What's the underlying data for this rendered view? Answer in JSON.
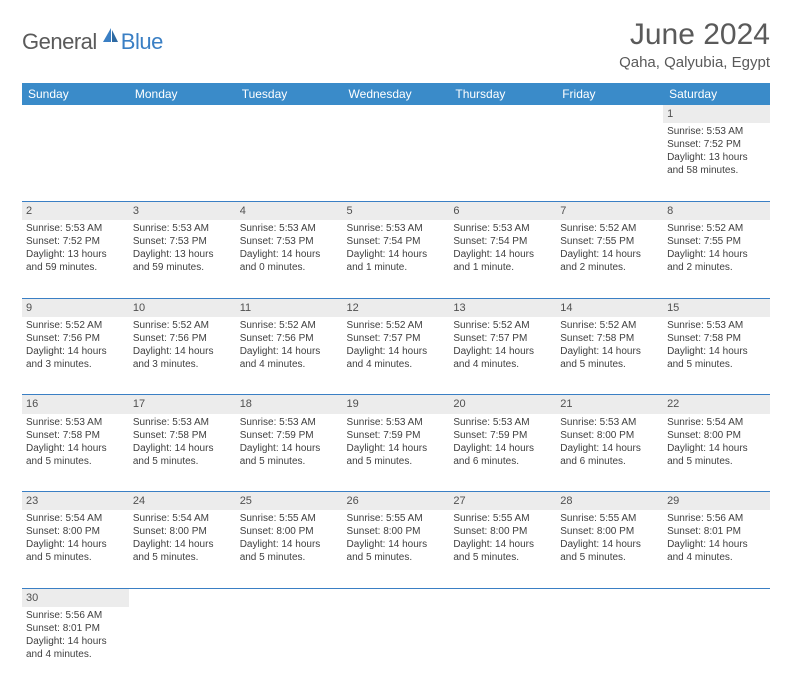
{
  "brand": {
    "part1": "General",
    "part2": "Blue"
  },
  "title": "June 2024",
  "location": "Qaha, Qalyubia, Egypt",
  "colors": {
    "header_bg": "#3a8bc9",
    "header_text": "#ffffff",
    "accent": "#3a7fc4",
    "text": "#404040",
    "daynum_bg": "#ececec"
  },
  "daysOfWeek": [
    "Sunday",
    "Monday",
    "Tuesday",
    "Wednesday",
    "Thursday",
    "Friday",
    "Saturday"
  ],
  "weeks": [
    [
      null,
      null,
      null,
      null,
      null,
      null,
      {
        "n": "1",
        "sr": "Sunrise: 5:53 AM",
        "ss": "Sunset: 7:52 PM",
        "dl1": "Daylight: 13 hours",
        "dl2": "and 58 minutes."
      }
    ],
    [
      {
        "n": "2",
        "sr": "Sunrise: 5:53 AM",
        "ss": "Sunset: 7:52 PM",
        "dl1": "Daylight: 13 hours",
        "dl2": "and 59 minutes."
      },
      {
        "n": "3",
        "sr": "Sunrise: 5:53 AM",
        "ss": "Sunset: 7:53 PM",
        "dl1": "Daylight: 13 hours",
        "dl2": "and 59 minutes."
      },
      {
        "n": "4",
        "sr": "Sunrise: 5:53 AM",
        "ss": "Sunset: 7:53 PM",
        "dl1": "Daylight: 14 hours",
        "dl2": "and 0 minutes."
      },
      {
        "n": "5",
        "sr": "Sunrise: 5:53 AM",
        "ss": "Sunset: 7:54 PM",
        "dl1": "Daylight: 14 hours",
        "dl2": "and 1 minute."
      },
      {
        "n": "6",
        "sr": "Sunrise: 5:53 AM",
        "ss": "Sunset: 7:54 PM",
        "dl1": "Daylight: 14 hours",
        "dl2": "and 1 minute."
      },
      {
        "n": "7",
        "sr": "Sunrise: 5:52 AM",
        "ss": "Sunset: 7:55 PM",
        "dl1": "Daylight: 14 hours",
        "dl2": "and 2 minutes."
      },
      {
        "n": "8",
        "sr": "Sunrise: 5:52 AM",
        "ss": "Sunset: 7:55 PM",
        "dl1": "Daylight: 14 hours",
        "dl2": "and 2 minutes."
      }
    ],
    [
      {
        "n": "9",
        "sr": "Sunrise: 5:52 AM",
        "ss": "Sunset: 7:56 PM",
        "dl1": "Daylight: 14 hours",
        "dl2": "and 3 minutes."
      },
      {
        "n": "10",
        "sr": "Sunrise: 5:52 AM",
        "ss": "Sunset: 7:56 PM",
        "dl1": "Daylight: 14 hours",
        "dl2": "and 3 minutes."
      },
      {
        "n": "11",
        "sr": "Sunrise: 5:52 AM",
        "ss": "Sunset: 7:56 PM",
        "dl1": "Daylight: 14 hours",
        "dl2": "and 4 minutes."
      },
      {
        "n": "12",
        "sr": "Sunrise: 5:52 AM",
        "ss": "Sunset: 7:57 PM",
        "dl1": "Daylight: 14 hours",
        "dl2": "and 4 minutes."
      },
      {
        "n": "13",
        "sr": "Sunrise: 5:52 AM",
        "ss": "Sunset: 7:57 PM",
        "dl1": "Daylight: 14 hours",
        "dl2": "and 4 minutes."
      },
      {
        "n": "14",
        "sr": "Sunrise: 5:52 AM",
        "ss": "Sunset: 7:58 PM",
        "dl1": "Daylight: 14 hours",
        "dl2": "and 5 minutes."
      },
      {
        "n": "15",
        "sr": "Sunrise: 5:53 AM",
        "ss": "Sunset: 7:58 PM",
        "dl1": "Daylight: 14 hours",
        "dl2": "and 5 minutes."
      }
    ],
    [
      {
        "n": "16",
        "sr": "Sunrise: 5:53 AM",
        "ss": "Sunset: 7:58 PM",
        "dl1": "Daylight: 14 hours",
        "dl2": "and 5 minutes."
      },
      {
        "n": "17",
        "sr": "Sunrise: 5:53 AM",
        "ss": "Sunset: 7:58 PM",
        "dl1": "Daylight: 14 hours",
        "dl2": "and 5 minutes."
      },
      {
        "n": "18",
        "sr": "Sunrise: 5:53 AM",
        "ss": "Sunset: 7:59 PM",
        "dl1": "Daylight: 14 hours",
        "dl2": "and 5 minutes."
      },
      {
        "n": "19",
        "sr": "Sunrise: 5:53 AM",
        "ss": "Sunset: 7:59 PM",
        "dl1": "Daylight: 14 hours",
        "dl2": "and 5 minutes."
      },
      {
        "n": "20",
        "sr": "Sunrise: 5:53 AM",
        "ss": "Sunset: 7:59 PM",
        "dl1": "Daylight: 14 hours",
        "dl2": "and 6 minutes."
      },
      {
        "n": "21",
        "sr": "Sunrise: 5:53 AM",
        "ss": "Sunset: 8:00 PM",
        "dl1": "Daylight: 14 hours",
        "dl2": "and 6 minutes."
      },
      {
        "n": "22",
        "sr": "Sunrise: 5:54 AM",
        "ss": "Sunset: 8:00 PM",
        "dl1": "Daylight: 14 hours",
        "dl2": "and 5 minutes."
      }
    ],
    [
      {
        "n": "23",
        "sr": "Sunrise: 5:54 AM",
        "ss": "Sunset: 8:00 PM",
        "dl1": "Daylight: 14 hours",
        "dl2": "and 5 minutes."
      },
      {
        "n": "24",
        "sr": "Sunrise: 5:54 AM",
        "ss": "Sunset: 8:00 PM",
        "dl1": "Daylight: 14 hours",
        "dl2": "and 5 minutes."
      },
      {
        "n": "25",
        "sr": "Sunrise: 5:55 AM",
        "ss": "Sunset: 8:00 PM",
        "dl1": "Daylight: 14 hours",
        "dl2": "and 5 minutes."
      },
      {
        "n": "26",
        "sr": "Sunrise: 5:55 AM",
        "ss": "Sunset: 8:00 PM",
        "dl1": "Daylight: 14 hours",
        "dl2": "and 5 minutes."
      },
      {
        "n": "27",
        "sr": "Sunrise: 5:55 AM",
        "ss": "Sunset: 8:00 PM",
        "dl1": "Daylight: 14 hours",
        "dl2": "and 5 minutes."
      },
      {
        "n": "28",
        "sr": "Sunrise: 5:55 AM",
        "ss": "Sunset: 8:00 PM",
        "dl1": "Daylight: 14 hours",
        "dl2": "and 5 minutes."
      },
      {
        "n": "29",
        "sr": "Sunrise: 5:56 AM",
        "ss": "Sunset: 8:01 PM",
        "dl1": "Daylight: 14 hours",
        "dl2": "and 4 minutes."
      }
    ],
    [
      {
        "n": "30",
        "sr": "Sunrise: 5:56 AM",
        "ss": "Sunset: 8:01 PM",
        "dl1": "Daylight: 14 hours",
        "dl2": "and 4 minutes."
      },
      null,
      null,
      null,
      null,
      null,
      null
    ]
  ]
}
